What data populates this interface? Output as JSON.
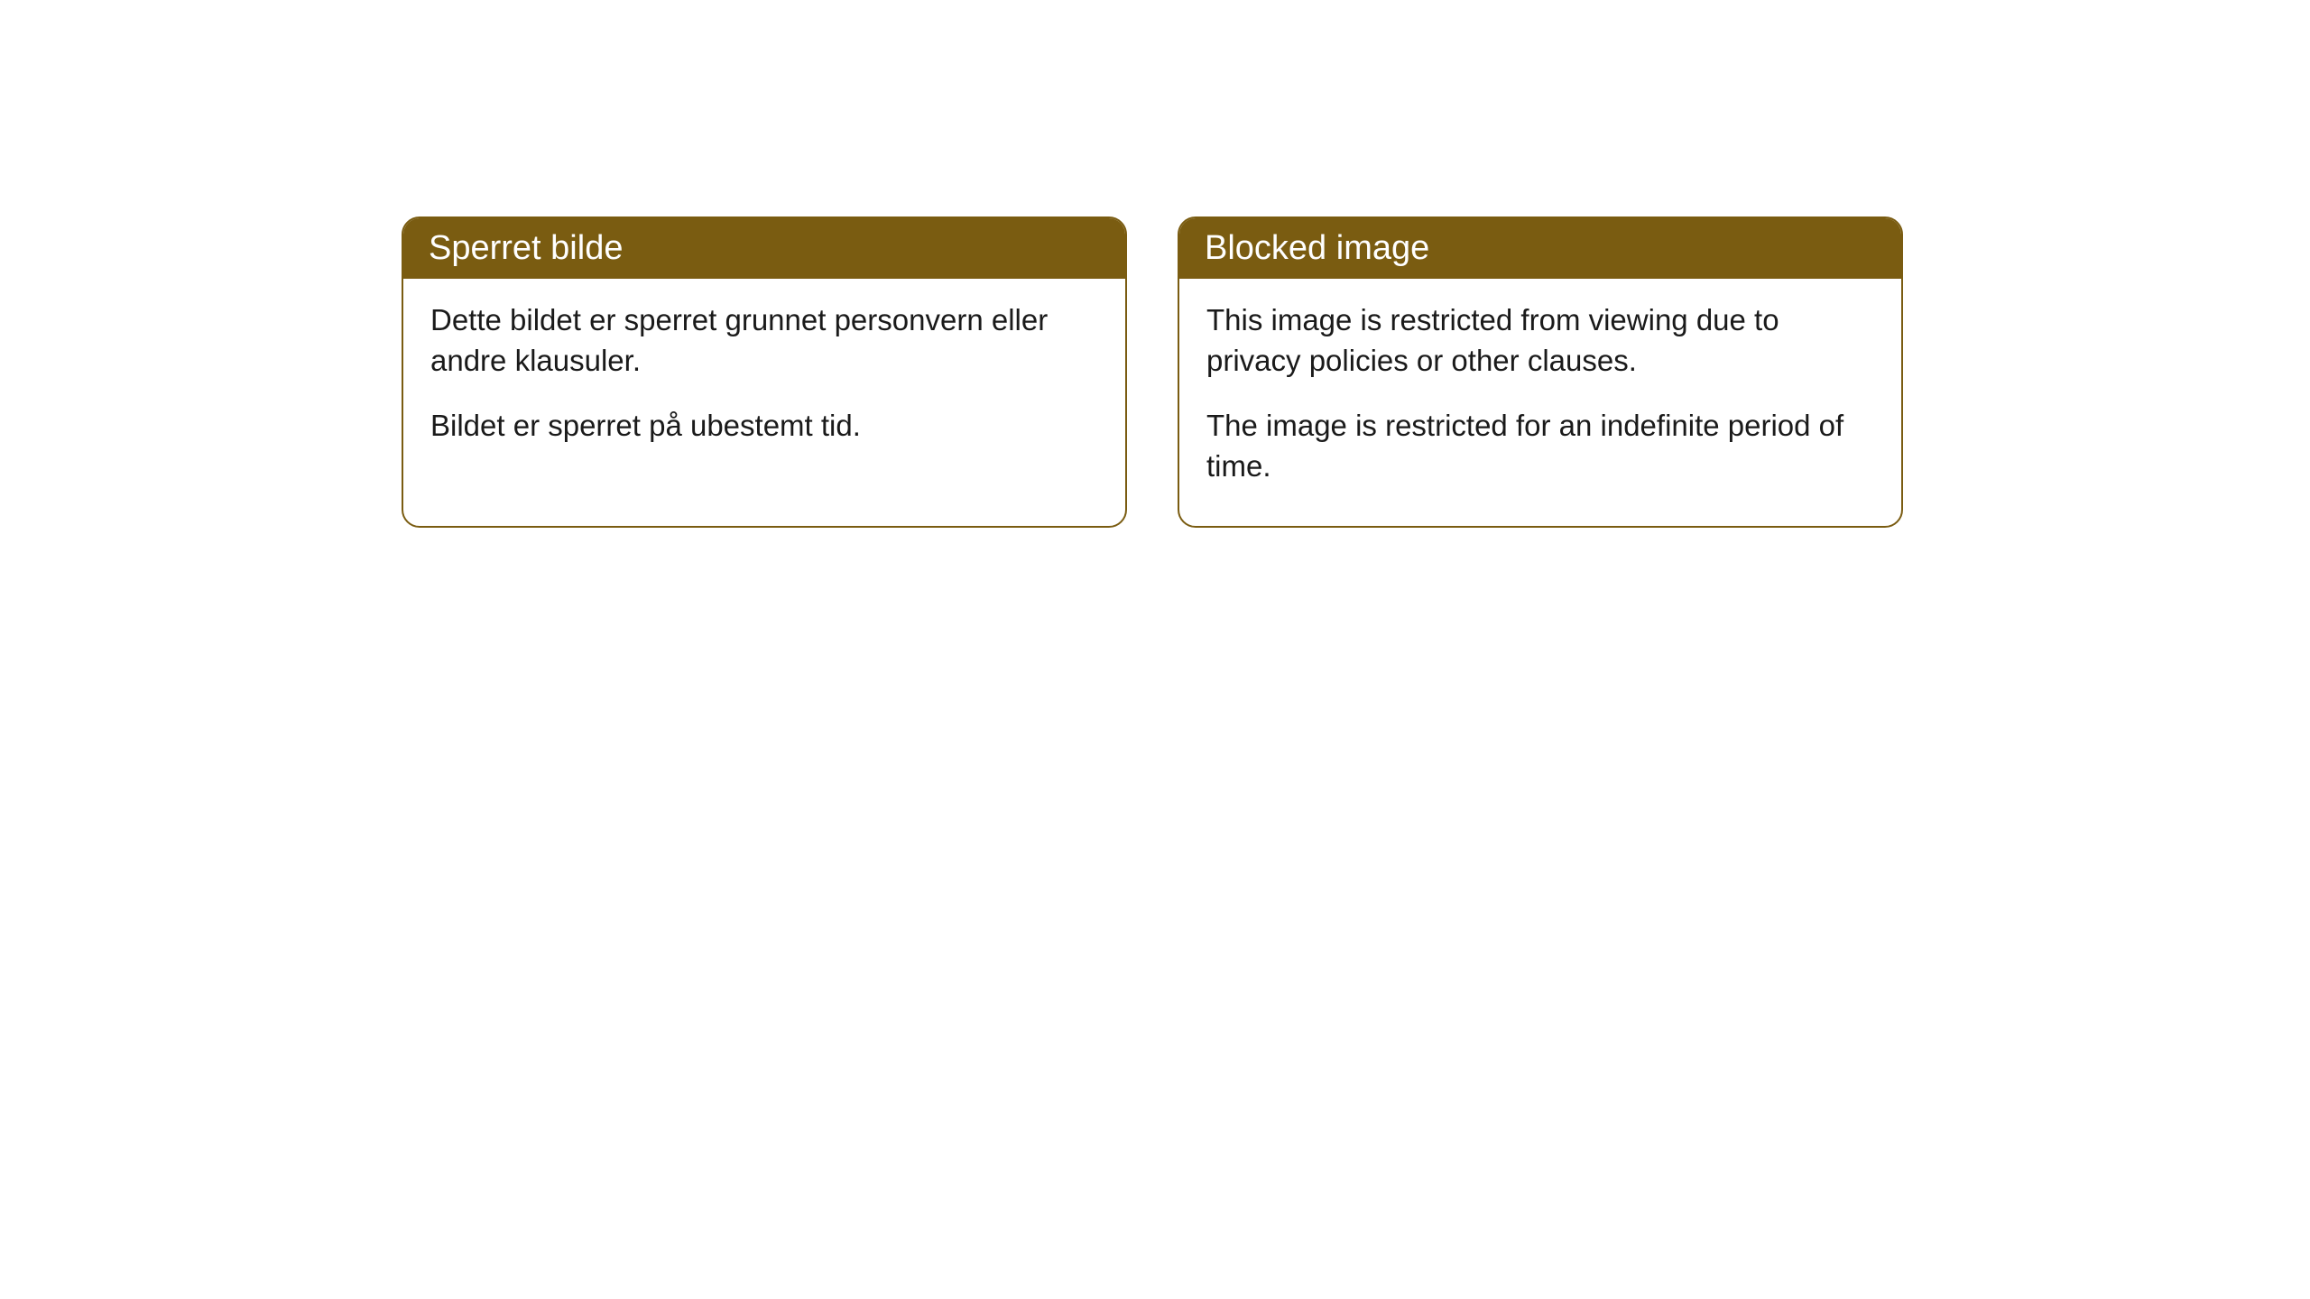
{
  "cards": [
    {
      "header": "Sperret bilde",
      "body_p1": "Dette bildet er sperret grunnet personvern eller andre klausuler.",
      "body_p2": "Bildet er sperret på ubestemt tid."
    },
    {
      "header": "Blocked image",
      "body_p1": "This image is restricted from viewing due to privacy policies or other clauses.",
      "body_p2": "The image is restricted for an indefinite period of time."
    }
  ],
  "colors": {
    "header_bg": "#7a5c11",
    "header_text": "#ffffff",
    "border": "#7a5c11",
    "body_bg": "#ffffff",
    "body_text": "#1a1a1a"
  }
}
